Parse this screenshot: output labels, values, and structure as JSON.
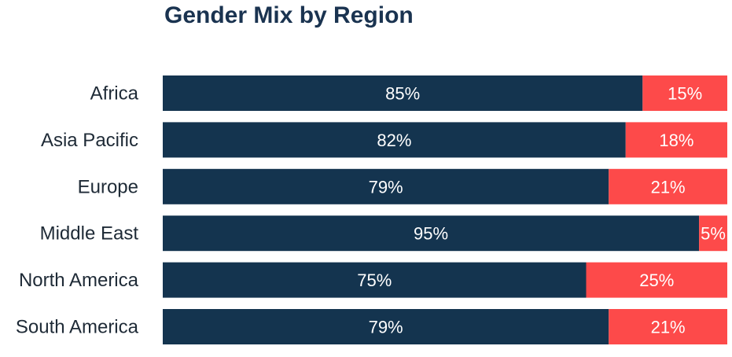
{
  "chart_data": {
    "type": "bar",
    "orientation": "horizontal",
    "stacked": true,
    "normalized": true,
    "title": "Gender Mix by Region",
    "xlabel": "",
    "ylabel": "",
    "xlim": [
      0,
      100
    ],
    "grid": false,
    "legend": "none",
    "value_format": "{v}%",
    "categories": [
      "Africa",
      "Asia Pacific",
      "Europe",
      "Middle East",
      "North America",
      "South America"
    ],
    "series": [
      {
        "color": "#14344f",
        "values": [
          85,
          82,
          79,
          95,
          75,
          79
        ]
      },
      {
        "color": "#fd4a4a",
        "values": [
          15,
          18,
          21,
          5,
          25,
          21
        ]
      }
    ]
  }
}
